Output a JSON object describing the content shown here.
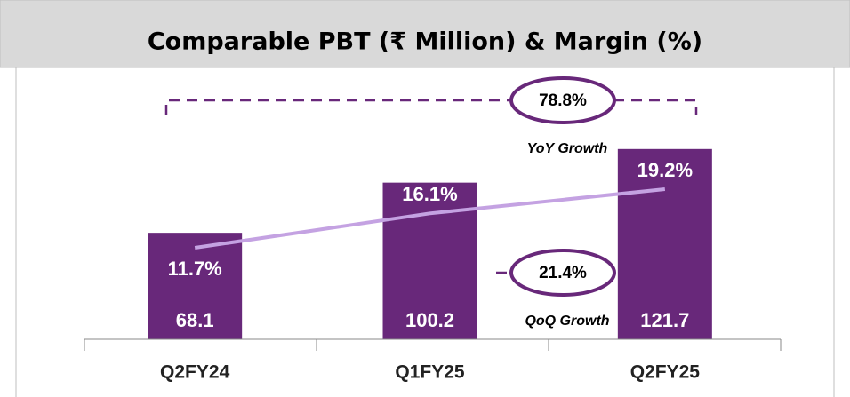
{
  "chart_data": {
    "type": "bar",
    "title": "Comparable PBT (₹ Million) & Margin (%)",
    "categories": [
      "Q2FY24",
      "Q1FY25",
      "Q2FY25"
    ],
    "series": [
      {
        "type": "bar",
        "color": "#68287a",
        "values": [
          68.1,
          100.2,
          121.7
        ]
      },
      {
        "type": "line",
        "axis": "y2",
        "color": "#c4a2e2",
        "values": [
          11.7,
          16.1,
          19.2
        ],
        "value_labels": [
          "11.7%",
          "16.1%",
          "19.2%"
        ]
      }
    ],
    "ylim": [
      0,
      130
    ],
    "y2lim": [
      0,
      26
    ],
    "annotations": [
      {
        "value_label": "78.8%",
        "label": "YoY Growth"
      },
      {
        "value_label": "21.4%",
        "label": "QoQ Growth"
      }
    ]
  }
}
